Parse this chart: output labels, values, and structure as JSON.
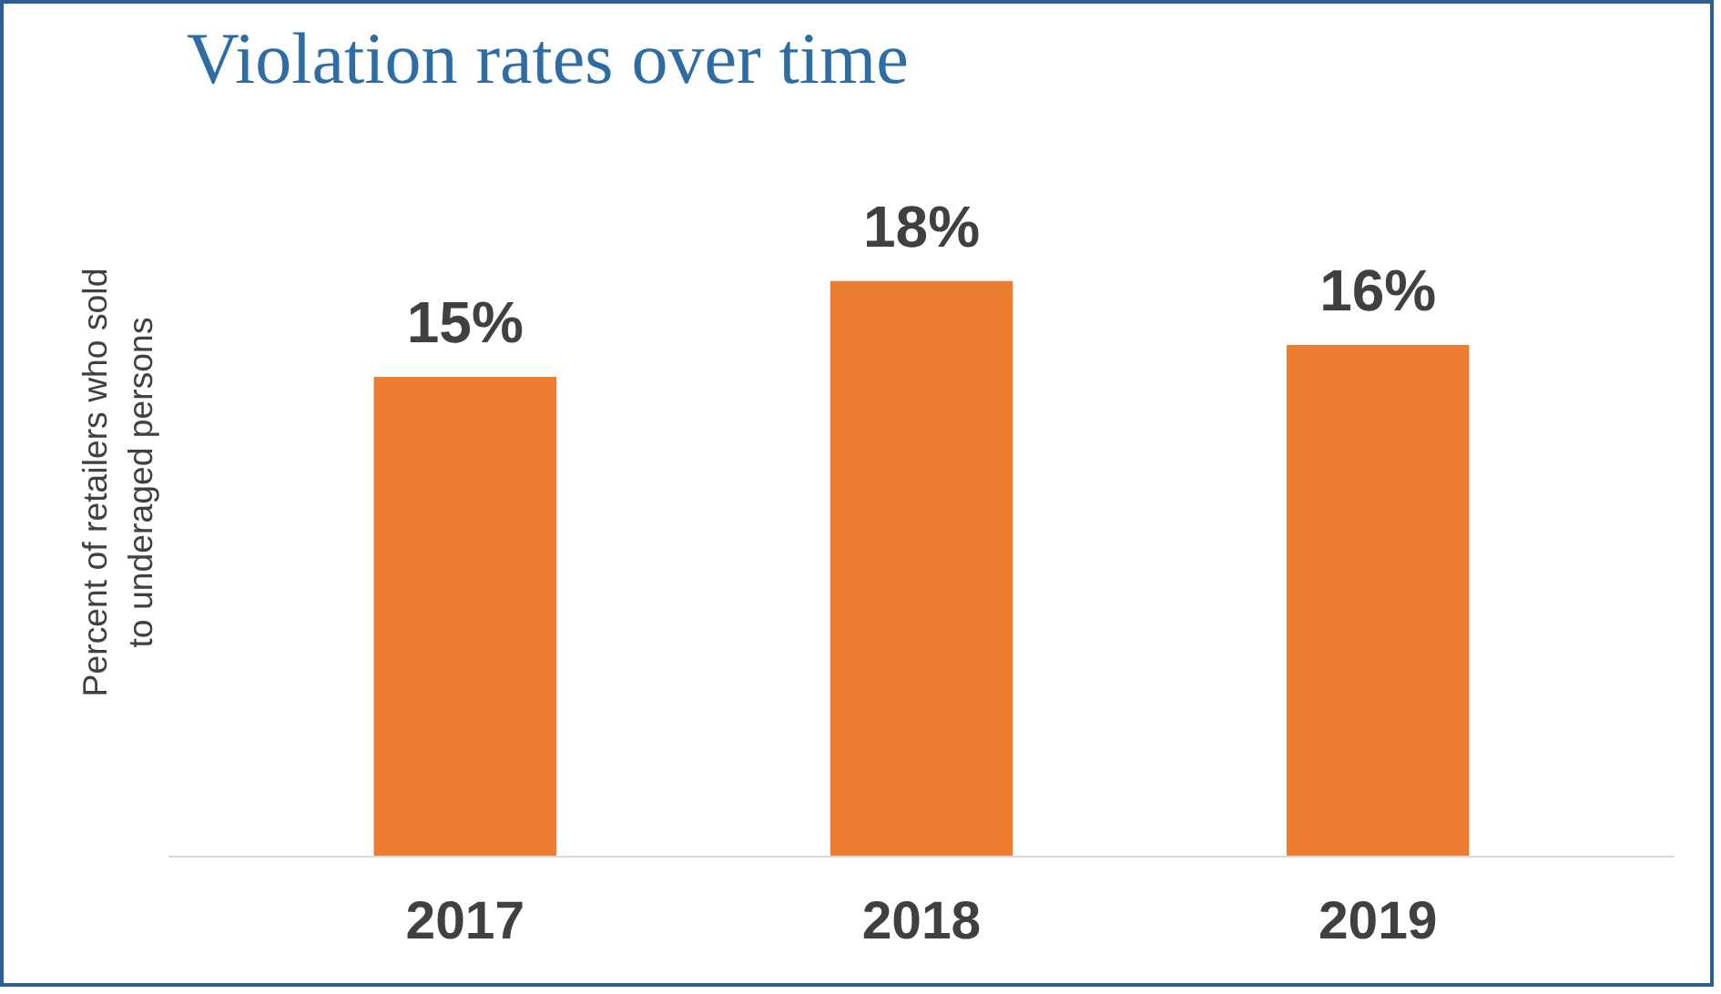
{
  "chart_data": {
    "type": "bar",
    "title": "Violation rates over time",
    "ylabel": "Percent of retailers who sold\nto underaged persons",
    "categories": [
      "2017",
      "2018",
      "2019"
    ],
    "values": [
      15,
      18,
      16
    ],
    "value_labels": [
      "15%",
      "18%",
      "16%"
    ],
    "color": "#ed7d31",
    "tick_labels": "x",
    "grid": false
  }
}
